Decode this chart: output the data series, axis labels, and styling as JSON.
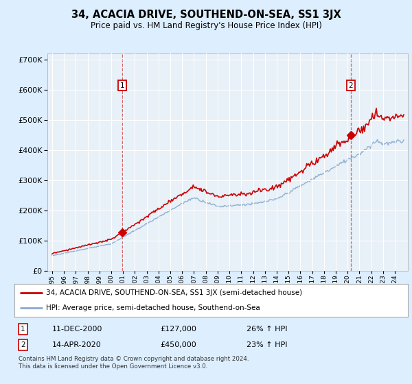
{
  "title": "34, ACACIA DRIVE, SOUTHEND-ON-SEA, SS1 3JX",
  "subtitle": "Price paid vs. HM Land Registry's House Price Index (HPI)",
  "ylim": [
    0,
    720000
  ],
  "yticks": [
    0,
    100000,
    200000,
    300000,
    400000,
    500000,
    600000,
    700000
  ],
  "x_start_year": 1995,
  "x_end_year": 2024,
  "sale1_year": 2000.95,
  "sale1_price": 127000,
  "sale2_year": 2020.28,
  "sale2_price": 450000,
  "legend_line1": "34, ACACIA DRIVE, SOUTHEND-ON-SEA, SS1 3JX (semi-detached house)",
  "legend_line2": "HPI: Average price, semi-detached house, Southend-on-Sea",
  "ann1_date": "11-DEC-2000",
  "ann1_price": "£127,000",
  "ann1_hpi": "26% ↑ HPI",
  "ann2_date": "14-APR-2020",
  "ann2_price": "£450,000",
  "ann2_hpi": "23% ↑ HPI",
  "footer": "Contains HM Land Registry data © Crown copyright and database right 2024.\nThis data is licensed under the Open Government Licence v3.0.",
  "red_color": "#cc0000",
  "blue_color": "#88aacc",
  "background_color": "#ddeeff",
  "plot_bg": "#e8f0f8"
}
